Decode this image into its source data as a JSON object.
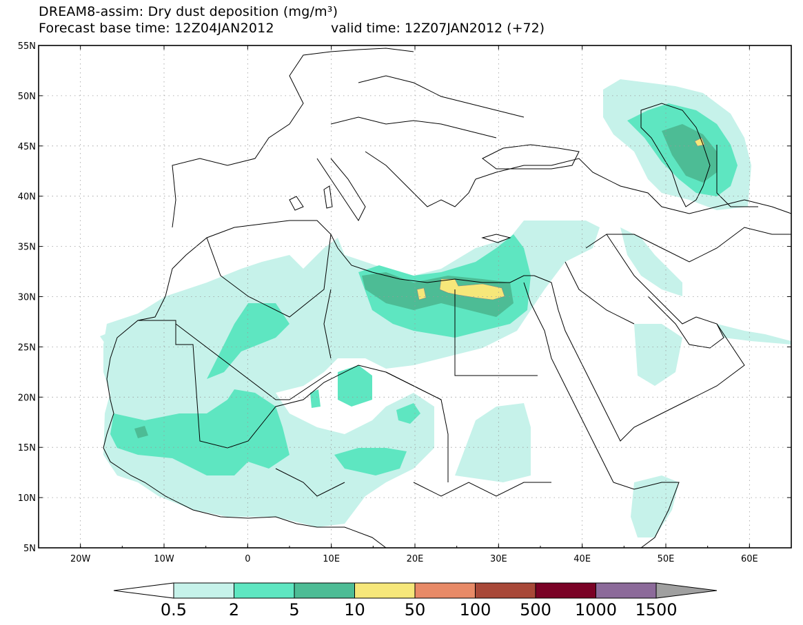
{
  "header": {
    "title": "DREAM8-assim: Dry dust deposition (mg/m³)",
    "base_time": "Forecast base time: 12Z04JAN2012",
    "valid_time": "valid time: 12Z07JAN2012 (+72)"
  },
  "axes": {
    "lat_labels": [
      "55N",
      "50N",
      "45N",
      "40N",
      "35N",
      "30N",
      "25N",
      "20N",
      "15N",
      "10N",
      "5N"
    ],
    "lon_labels": [
      "20W",
      "10W",
      "0",
      "10E",
      "20E",
      "30E",
      "40E",
      "50E",
      "60E"
    ],
    "lon_range": [
      -25,
      65
    ],
    "lat_range": [
      5,
      55
    ]
  },
  "legend": {
    "levels": [
      "0.5",
      "2",
      "5",
      "10",
      "50",
      "100",
      "500",
      "1000",
      "1500"
    ],
    "colors": [
      "#c6f2ea",
      "#5ee6c1",
      "#4dbc95",
      "#f6e77a",
      "#e88a67",
      "#a84838",
      "#7a0226",
      "#8c6a9a"
    ],
    "under_color": "#ffffff",
    "over_color": "#a0a0a0"
  },
  "colors": {
    "land_line": "#000000",
    "grid": "#999999"
  }
}
